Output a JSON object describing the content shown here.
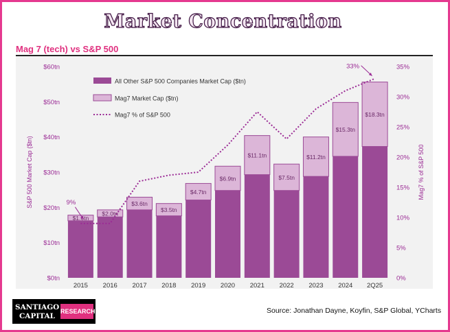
{
  "header": {
    "title": "Market Concentration",
    "subtitle": "Mag 7 (tech) vs S&P 500"
  },
  "footer": {
    "logo_line1": "SANTIAGO",
    "logo_line2": "CAPITAL",
    "logo_badge": "RESEARCH",
    "source": "Source: Jonathan Dayne, Koyfin, S&P Global, YCharts"
  },
  "colors": {
    "other": "#9b4a96",
    "mag7": "#dcb6d8",
    "line": "#9b2b95",
    "accent": "#e0307f",
    "axis_text": "#9b2b95"
  },
  "chart_data": {
    "type": "bar",
    "stacked": true,
    "categories": [
      "2015",
      "2016",
      "2017",
      "2018",
      "2019",
      "2020",
      "2021",
      "2022",
      "2023",
      "2024",
      "2Q25"
    ],
    "series": [
      {
        "name": "All Other S&P 500 Companies Market Cap ($tn)",
        "values": [
          16.2,
          17.3,
          19.3,
          17.6,
          22.1,
          24.8,
          29.3,
          24.8,
          28.8,
          34.5,
          37.3
        ]
      },
      {
        "name": "Mag7 Market Cap ($tn)",
        "values": [
          1.6,
          2.0,
          3.6,
          3.5,
          4.7,
          6.9,
          11.1,
          7.5,
          11.2,
          15.3,
          18.3
        ]
      }
    ],
    "mag7_labels": [
      "$1.6tn",
      "$2.0tn",
      "$3.6tn",
      "$3.5tn",
      "$4.7tn",
      "$6.9tn",
      "$11.1tn",
      "$7.5tn",
      "$11.2tn",
      "$15.3tn",
      "$18.3tn"
    ],
    "line_series": {
      "name": "Mag7 % of S&P 500",
      "axis": "right",
      "values": [
        9,
        9,
        16,
        17,
        17.5,
        22,
        27.5,
        23,
        28,
        31,
        33
      ]
    },
    "annotations": [
      {
        "category": "2015",
        "text": "9%"
      },
      {
        "category": "2Q25",
        "text": "33%"
      }
    ],
    "ylabel": "S&P 500 Market Cap ($tn)",
    "y2label": "Mag7 % of S&P 500",
    "ylim": [
      0,
      60
    ],
    "y2lim": [
      0,
      35
    ],
    "yticks": [
      "$0tn",
      "$10tn",
      "$20tn",
      "$30tn",
      "$40tn",
      "$50tn",
      "$60tn"
    ],
    "y2ticks": [
      "0%",
      "5%",
      "10%",
      "15%",
      "20%",
      "25%",
      "30%",
      "35%"
    ],
    "legend": "top-left",
    "grid": false
  }
}
